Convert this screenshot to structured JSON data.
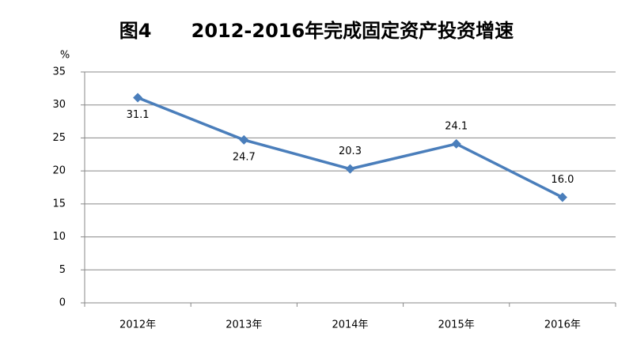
{
  "chart_data": {
    "type": "line",
    "title": "图4      2012-2016年完成固定资产投资增速",
    "y_label": "%",
    "categories": [
      "2012年",
      "2013年",
      "2014年",
      "2015年",
      "2016年"
    ],
    "values": [
      31.1,
      24.7,
      20.3,
      24.1,
      16.0
    ],
    "value_labels": [
      "31.1",
      "24.7",
      "20.3",
      "24.1",
      "16.0"
    ],
    "color": "#4a7ebb",
    "ylim": [
      0,
      35
    ],
    "yticks": [
      0,
      5,
      10,
      15,
      20,
      25,
      30,
      35
    ],
    "grid": true
  }
}
